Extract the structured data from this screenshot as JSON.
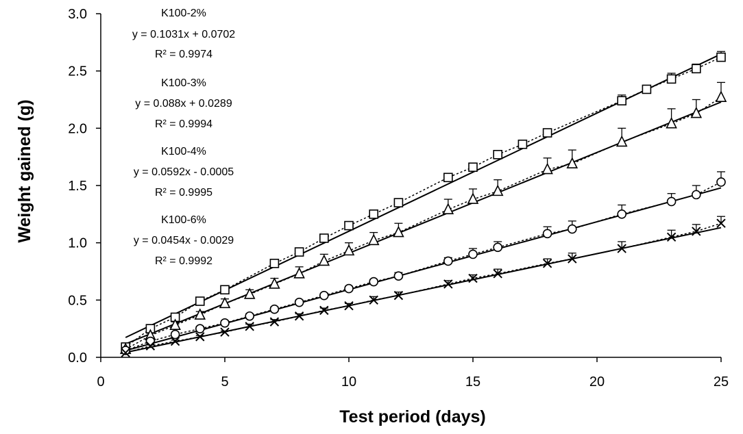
{
  "chart_data": {
    "type": "scatter",
    "xlabel": "Test period (days)",
    "ylabel": "Weight gained (g)",
    "xlim": [
      0,
      25
    ],
    "ylim": [
      0,
      3.0
    ],
    "xticks": [
      "0",
      "5",
      "10",
      "15",
      "20",
      "25"
    ],
    "yticks": [
      "0.0",
      "0.5",
      "1.0",
      "1.5",
      "2.0",
      "2.5",
      "3.0"
    ],
    "grid": false,
    "legend": "none",
    "series": [
      {
        "marker": "square",
        "x": [
          1,
          2,
          3,
          4,
          5,
          7,
          8,
          9,
          10,
          11,
          12,
          14,
          15,
          16,
          17,
          18,
          21,
          22,
          23,
          24,
          25
        ],
        "y": [
          0.09,
          0.25,
          0.35,
          0.49,
          0.59,
          0.82,
          0.92,
          1.04,
          1.15,
          1.25,
          1.35,
          1.57,
          1.66,
          1.77,
          1.86,
          1.96,
          2.24,
          2.34,
          2.43,
          2.52,
          2.62
        ],
        "err": [
          0.02,
          0.02,
          0.02,
          0.02,
          0.02,
          0.02,
          0.02,
          0.02,
          0.02,
          0.02,
          0.02,
          0.03,
          0.03,
          0.03,
          0.03,
          0.03,
          0.05,
          0.03,
          0.05,
          0.04,
          0.05
        ],
        "fit": {
          "slope": 0.1031,
          "intercept": 0.0702
        }
      },
      {
        "marker": "triangle",
        "x": [
          1,
          2,
          3,
          4,
          5,
          6,
          7,
          8,
          9,
          10,
          11,
          12,
          14,
          15,
          16,
          18,
          19,
          21,
          23,
          24,
          25
        ],
        "y": [
          0.07,
          0.19,
          0.28,
          0.37,
          0.47,
          0.55,
          0.64,
          0.73,
          0.84,
          0.93,
          1.02,
          1.09,
          1.29,
          1.38,
          1.45,
          1.64,
          1.69,
          1.88,
          2.04,
          2.13,
          2.27
        ],
        "err": [
          0.02,
          0.02,
          0.03,
          0.03,
          0.04,
          0.04,
          0.05,
          0.06,
          0.06,
          0.07,
          0.07,
          0.08,
          0.09,
          0.09,
          0.1,
          0.1,
          0.12,
          0.12,
          0.13,
          0.12,
          0.13
        ],
        "fit": {
          "slope": 0.088,
          "intercept": 0.0289
        }
      },
      {
        "marker": "circle",
        "x": [
          1,
          2,
          3,
          4,
          5,
          6,
          7,
          8,
          9,
          10,
          11,
          12,
          14,
          15,
          16,
          18,
          19,
          21,
          23,
          24,
          25
        ],
        "y": [
          0.06,
          0.14,
          0.2,
          0.25,
          0.3,
          0.36,
          0.42,
          0.48,
          0.54,
          0.6,
          0.66,
          0.71,
          0.84,
          0.9,
          0.96,
          1.08,
          1.12,
          1.25,
          1.36,
          1.42,
          1.53
        ],
        "err": [
          0.01,
          0.01,
          0.01,
          0.02,
          0.02,
          0.02,
          0.02,
          0.02,
          0.02,
          0.02,
          0.02,
          0.03,
          0.03,
          0.05,
          0.05,
          0.06,
          0.07,
          0.08,
          0.07,
          0.08,
          0.09
        ],
        "fit": {
          "slope": 0.0592,
          "intercept": -0.0005
        }
      },
      {
        "marker": "x",
        "x": [
          1,
          2,
          3,
          4,
          5,
          6,
          7,
          8,
          9,
          10,
          11,
          12,
          14,
          15,
          16,
          18,
          19,
          21,
          23,
          24,
          25
        ],
        "y": [
          0.04,
          0.1,
          0.14,
          0.18,
          0.22,
          0.27,
          0.31,
          0.36,
          0.41,
          0.45,
          0.5,
          0.54,
          0.64,
          0.69,
          0.73,
          0.82,
          0.86,
          0.95,
          1.05,
          1.1,
          1.17
        ],
        "err": [
          0.01,
          0.01,
          0.01,
          0.01,
          0.01,
          0.02,
          0.02,
          0.02,
          0.02,
          0.02,
          0.03,
          0.03,
          0.03,
          0.03,
          0.04,
          0.04,
          0.05,
          0.06,
          0.06,
          0.06,
          0.06
        ],
        "fit": {
          "slope": 0.0454,
          "intercept": -0.0029
        }
      }
    ],
    "annotations": [
      {
        "name": "K100-2%",
        "equation": "y = 0.1031x + 0.0702",
        "r2": "R² = 0.9974"
      },
      {
        "name": "K100-3%",
        "equation": "y = 0.088x + 0.0289",
        "r2": "R² = 0.9994"
      },
      {
        "name": "K100-4%",
        "equation": "y = 0.0592x - 0.0005",
        "r2": "R² = 0.9995"
      },
      {
        "name": "K100-6%",
        "equation": "y = 0.0454x - 0.0029",
        "r2": "R² = 0.9992"
      }
    ]
  }
}
